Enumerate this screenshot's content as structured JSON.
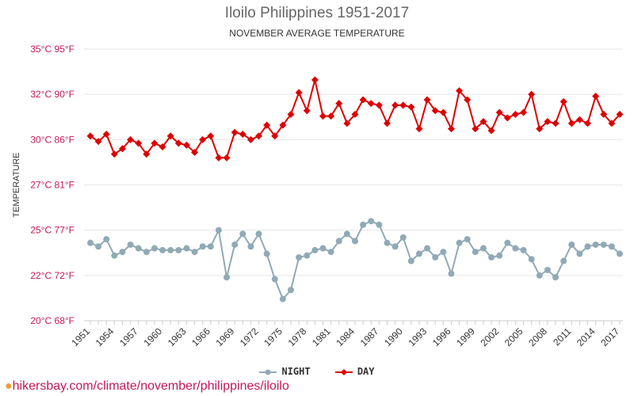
{
  "chart_data": {
    "type": "line",
    "title": "Iloilo Philippines 1951-2017",
    "subtitle": "NOVEMBER AVERAGE TEMPERATURE",
    "ylabel": "TEMPERATURE",
    "xlabel": "",
    "ylim": [
      20,
      35
    ],
    "y_ticks": [
      {
        "value": 20,
        "label": "20°C 68°F"
      },
      {
        "value": 22.5,
        "label": "22°C 72°F"
      },
      {
        "value": 25,
        "label": "25°C 77°F"
      },
      {
        "value": 27.5,
        "label": "27°C 81°F"
      },
      {
        "value": 30,
        "label": "30°C 86°F"
      },
      {
        "value": 32.5,
        "label": "32°C 90°F"
      },
      {
        "value": 35,
        "label": "35°C 95°F"
      }
    ],
    "x_tick_labels": [
      "1951",
      "1954",
      "1957",
      "1960",
      "1963",
      "1966",
      "1969",
      "1972",
      "1975",
      "1978",
      "1981",
      "1984",
      "1987",
      "1990",
      "1993",
      "1996",
      "1999",
      "2002",
      "2005",
      "2008",
      "2011",
      "2014",
      "2017"
    ],
    "x": [
      1951,
      1952,
      1953,
      1954,
      1955,
      1956,
      1957,
      1958,
      1959,
      1960,
      1961,
      1962,
      1963,
      1964,
      1965,
      1966,
      1967,
      1968,
      1969,
      1970,
      1971,
      1972,
      1973,
      1974,
      1975,
      1976,
      1977,
      1978,
      1979,
      1980,
      1981,
      1982,
      1983,
      1984,
      1985,
      1986,
      1987,
      1988,
      1989,
      1990,
      1991,
      1992,
      1993,
      1994,
      1995,
      1996,
      1997,
      1998,
      1999,
      2000,
      2001,
      2002,
      2003,
      2004,
      2005,
      2006,
      2007,
      2008,
      2009,
      2010,
      2011,
      2012,
      2013,
      2014,
      2015,
      2016,
      2017
    ],
    "series": [
      {
        "name": "NIGHT",
        "color": "#90aab5",
        "marker": "circle",
        "values": [
          24.3,
          24.1,
          24.5,
          23.6,
          23.8,
          24.2,
          24.0,
          23.8,
          24.0,
          23.9,
          23.9,
          23.9,
          24.0,
          23.8,
          24.1,
          24.1,
          25.0,
          22.4,
          24.2,
          24.8,
          24.1,
          24.8,
          23.7,
          22.3,
          21.2,
          21.7,
          23.5,
          23.6,
          23.9,
          24.0,
          23.8,
          24.4,
          24.8,
          24.4,
          25.3,
          25.5,
          25.3,
          24.3,
          24.1,
          24.6,
          23.3,
          23.7,
          24.0,
          23.5,
          23.8,
          22.6,
          24.3,
          24.5,
          23.8,
          24.0,
          23.5,
          23.6,
          24.3,
          24.0,
          23.9,
          23.4,
          22.5,
          22.8,
          22.4,
          23.3,
          24.2,
          23.7,
          24.1,
          24.2,
          24.2,
          24.1,
          23.7
        ]
      },
      {
        "name": "DAY",
        "color": "#dd0000",
        "marker": "diamond",
        "values": [
          30.2,
          29.9,
          30.3,
          29.2,
          29.5,
          30.0,
          29.8,
          29.2,
          29.8,
          29.6,
          30.2,
          29.8,
          29.7,
          29.3,
          30.0,
          30.2,
          29.0,
          29.0,
          30.4,
          30.3,
          30.0,
          30.2,
          30.8,
          30.2,
          30.8,
          31.4,
          32.6,
          31.6,
          33.3,
          31.3,
          31.3,
          32.0,
          30.9,
          31.4,
          32.2,
          32.0,
          31.9,
          30.9,
          31.9,
          31.9,
          31.8,
          30.6,
          32.2,
          31.6,
          31.5,
          30.6,
          32.7,
          32.2,
          30.6,
          31.0,
          30.5,
          31.5,
          31.2,
          31.4,
          31.5,
          32.5,
          30.6,
          31.0,
          30.9,
          32.1,
          30.9,
          31.1,
          30.9,
          32.4,
          31.4,
          30.9,
          31.4
        ]
      }
    ]
  },
  "footer": {
    "pin_icon": "location-pin-icon",
    "text": "hikersbay.com/climate/november/philippines/iloilo"
  }
}
